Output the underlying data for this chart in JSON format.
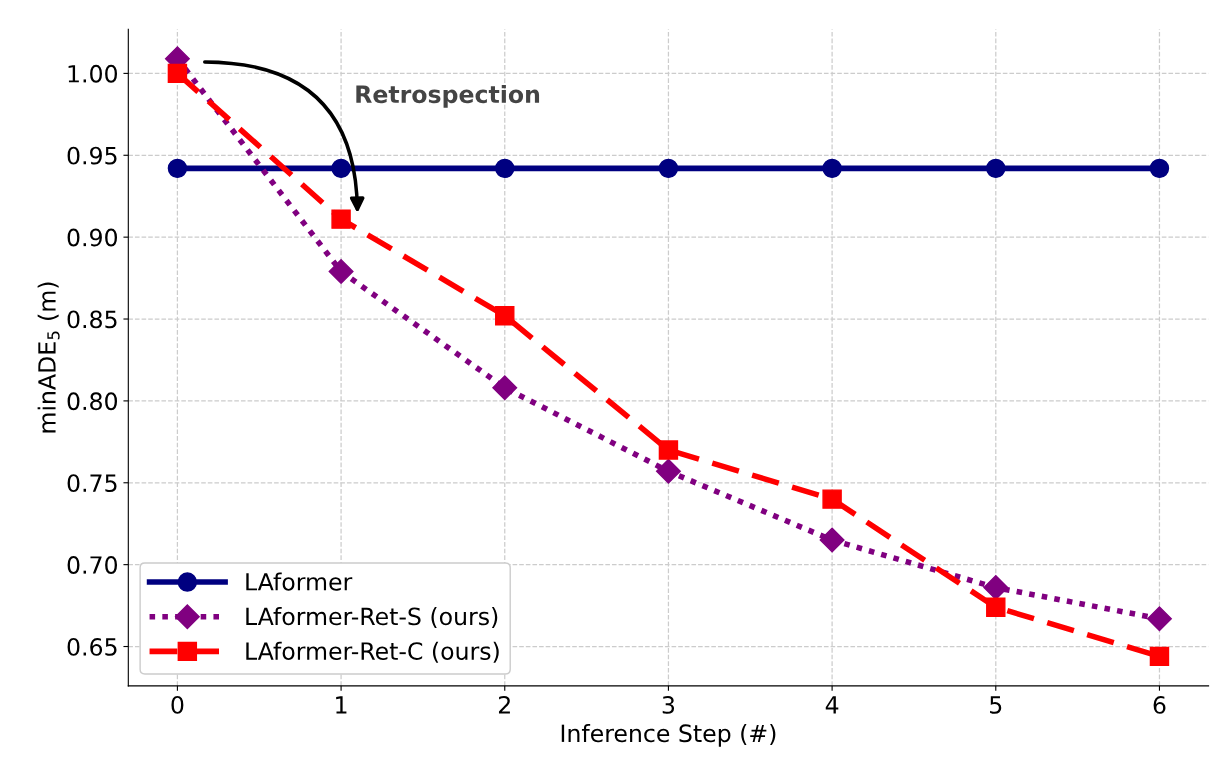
{
  "chart_data": {
    "type": "line",
    "xlabel": "Inference Step (#)",
    "ylabel": "minADE$_{5}$ (m)",
    "x": [
      0,
      1,
      2,
      3,
      4,
      5,
      6
    ],
    "xlim": [
      -0.3,
      6.3
    ],
    "xticks": [
      0,
      1,
      2,
      3,
      4,
      5,
      6
    ],
    "ylim": [
      0.626,
      1.027
    ],
    "yticks": [
      {
        "value": 0.65,
        "label": "0.65"
      },
      {
        "value": 0.7,
        "label": "0.70"
      },
      {
        "value": 0.75,
        "label": "0.75"
      },
      {
        "value": 0.8,
        "label": "0.80"
      },
      {
        "value": 0.85,
        "label": "0.85"
      },
      {
        "value": 0.9,
        "label": "0.90"
      },
      {
        "value": 0.95,
        "label": "0.95"
      },
      {
        "value": 1.0,
        "label": "1.00"
      }
    ],
    "grid": true,
    "legend": "bottom left",
    "annotations": [
      "Retrospection"
    ],
    "series": [
      {
        "name": "LAformer",
        "color": "#000080",
        "marker": "circle",
        "line_style": "solid",
        "values": [
          0.942,
          0.942,
          0.942,
          0.942,
          0.942,
          0.942,
          0.942
        ]
      },
      {
        "name": "LAformer-Ret-S (ours)",
        "color": "#800080",
        "marker": "diamond",
        "line_style": "dotted",
        "values": [
          1.009,
          0.879,
          0.808,
          0.757,
          0.715,
          0.686,
          0.667
        ]
      },
      {
        "name": "LAformer-Ret-C (ours)",
        "color": "#ff0000",
        "marker": "square",
        "line_style": "dashed",
        "values": [
          1.0,
          0.911,
          0.852,
          0.77,
          0.74,
          0.674,
          0.644
        ]
      }
    ]
  }
}
